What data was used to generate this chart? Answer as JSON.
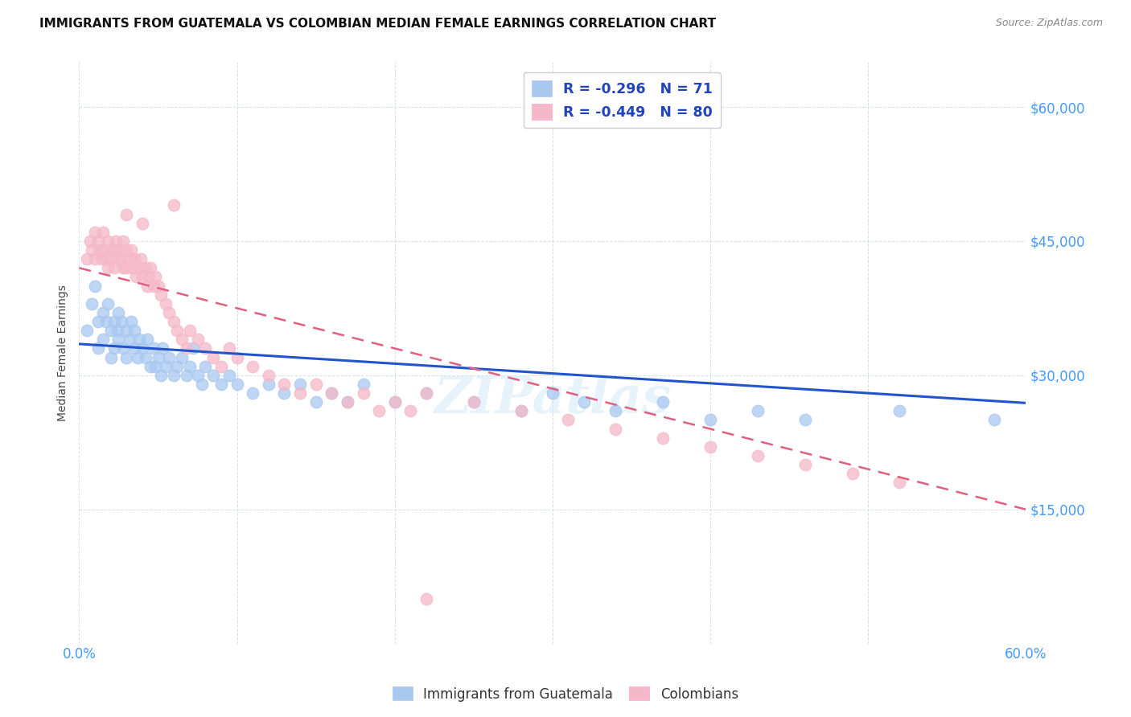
{
  "title": "IMMIGRANTS FROM GUATEMALA VS COLOMBIAN MEDIAN FEMALE EARNINGS CORRELATION CHART",
  "source": "Source: ZipAtlas.com",
  "ylabel": "Median Female Earnings",
  "ytick_values": [
    15000,
    30000,
    45000,
    60000
  ],
  "ylim": [
    0,
    65000
  ],
  "xlim": [
    0.0,
    0.6
  ],
  "legend_r1": "-0.296",
  "legend_n1": "71",
  "legend_r2": "-0.449",
  "legend_n2": "80",
  "color_guatemala": "#a8c8f0",
  "color_colombia": "#f5b8c8",
  "color_line_guatemala": "#2255cc",
  "color_line_colombia": "#e06080",
  "label_guatemala": "Immigrants from Guatemala",
  "label_colombia": "Colombians",
  "watermark": "ZIPatlas",
  "guatemala_intercept": 33500,
  "guatemala_slope": -11000,
  "colombia_intercept": 42000,
  "colombia_slope": -45000,
  "guatemala_x": [
    0.005,
    0.008,
    0.01,
    0.012,
    0.012,
    0.015,
    0.015,
    0.017,
    0.018,
    0.02,
    0.02,
    0.022,
    0.022,
    0.024,
    0.025,
    0.025,
    0.027,
    0.028,
    0.03,
    0.03,
    0.032,
    0.033,
    0.035,
    0.035,
    0.037,
    0.038,
    0.04,
    0.042,
    0.043,
    0.045,
    0.047,
    0.048,
    0.05,
    0.052,
    0.053,
    0.055,
    0.057,
    0.06,
    0.062,
    0.065,
    0.068,
    0.07,
    0.072,
    0.075,
    0.078,
    0.08,
    0.085,
    0.09,
    0.095,
    0.1,
    0.11,
    0.12,
    0.13,
    0.14,
    0.15,
    0.16,
    0.17,
    0.18,
    0.2,
    0.22,
    0.25,
    0.28,
    0.3,
    0.32,
    0.34,
    0.37,
    0.4,
    0.43,
    0.46,
    0.52,
    0.58
  ],
  "guatemala_y": [
    35000,
    38000,
    40000,
    36000,
    33000,
    37000,
    34000,
    36000,
    38000,
    35000,
    32000,
    36000,
    33000,
    35000,
    37000,
    34000,
    36000,
    33000,
    35000,
    32000,
    34000,
    36000,
    33000,
    35000,
    32000,
    34000,
    33000,
    32000,
    34000,
    31000,
    33000,
    31000,
    32000,
    30000,
    33000,
    31000,
    32000,
    30000,
    31000,
    32000,
    30000,
    31000,
    33000,
    30000,
    29000,
    31000,
    30000,
    29000,
    30000,
    29000,
    28000,
    29000,
    28000,
    29000,
    27000,
    28000,
    27000,
    29000,
    27000,
    28000,
    27000,
    26000,
    28000,
    27000,
    26000,
    27000,
    25000,
    26000,
    25000,
    26000,
    25000
  ],
  "colombia_x": [
    0.005,
    0.007,
    0.008,
    0.01,
    0.01,
    0.012,
    0.013,
    0.014,
    0.015,
    0.015,
    0.017,
    0.018,
    0.018,
    0.02,
    0.02,
    0.022,
    0.022,
    0.023,
    0.025,
    0.025,
    0.027,
    0.028,
    0.028,
    0.03,
    0.03,
    0.032,
    0.033,
    0.034,
    0.035,
    0.036,
    0.038,
    0.039,
    0.04,
    0.042,
    0.043,
    0.044,
    0.045,
    0.047,
    0.048,
    0.05,
    0.052,
    0.055,
    0.057,
    0.06,
    0.062,
    0.065,
    0.068,
    0.07,
    0.075,
    0.08,
    0.085,
    0.09,
    0.095,
    0.1,
    0.11,
    0.12,
    0.13,
    0.14,
    0.15,
    0.16,
    0.17,
    0.18,
    0.19,
    0.2,
    0.21,
    0.22,
    0.25,
    0.28,
    0.31,
    0.34,
    0.37,
    0.4,
    0.43,
    0.46,
    0.49,
    0.52,
    0.03,
    0.04,
    0.06,
    0.22
  ],
  "colombia_y": [
    43000,
    45000,
    44000,
    46000,
    43000,
    45000,
    44000,
    43000,
    46000,
    44000,
    43000,
    45000,
    42000,
    44000,
    43000,
    44000,
    42000,
    45000,
    43000,
    44000,
    43000,
    45000,
    42000,
    44000,
    42000,
    43000,
    44000,
    42000,
    43000,
    41000,
    42000,
    43000,
    41000,
    42000,
    40000,
    41000,
    42000,
    40000,
    41000,
    40000,
    39000,
    38000,
    37000,
    36000,
    35000,
    34000,
    33000,
    35000,
    34000,
    33000,
    32000,
    31000,
    33000,
    32000,
    31000,
    30000,
    29000,
    28000,
    29000,
    28000,
    27000,
    28000,
    26000,
    27000,
    26000,
    28000,
    27000,
    26000,
    25000,
    24000,
    23000,
    22000,
    21000,
    20000,
    19000,
    18000,
    48000,
    47000,
    49000,
    5000
  ]
}
